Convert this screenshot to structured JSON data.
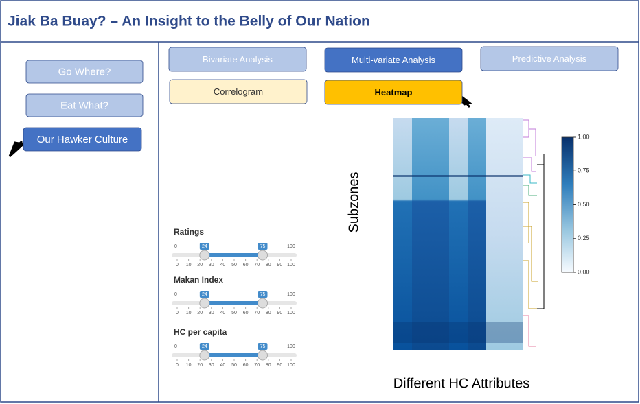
{
  "header": {
    "title": "Jiak Ba Buay? – An Insight to the Belly of Our Nation"
  },
  "sidebar": {
    "buttons": [
      "Go Where?",
      "Eat What?",
      "Our Hawker Culture"
    ]
  },
  "tabs": {
    "row1": [
      "Bivariate Analysis",
      "Multi-variate Analysis",
      "Predictive Analysis"
    ],
    "row2": [
      "Correlogram",
      "Heatmap"
    ]
  },
  "sliders": [
    {
      "label": "Ratings",
      "min": 0,
      "max": 100,
      "low": 24,
      "high": 75,
      "ticks": [
        0,
        10,
        20,
        30,
        40,
        50,
        60,
        70,
        80,
        90,
        100
      ]
    },
    {
      "label": "Makan Index",
      "min": 0,
      "max": 100,
      "low": 24,
      "high": 75,
      "ticks": [
        0,
        10,
        20,
        30,
        40,
        50,
        60,
        70,
        80,
        90,
        100
      ]
    },
    {
      "label": "HC per capita",
      "min": 0,
      "max": 100,
      "low": 24,
      "high": 75,
      "ticks": [
        0,
        10,
        20,
        30,
        40,
        50,
        60,
        70,
        80,
        90,
        100
      ]
    }
  ],
  "heatmap": {
    "y_label": "Subzones",
    "x_label": "Different HC Attributes",
    "colorbar_ticks": [
      {
        "value": 1,
        "label": "1.00"
      },
      {
        "value": 0.75,
        "label": "0.75"
      },
      {
        "value": 0.5,
        "label": "0.50"
      },
      {
        "value": 0.25,
        "label": "0.25"
      },
      {
        "value": 0,
        "label": "0.00"
      }
    ]
  }
}
